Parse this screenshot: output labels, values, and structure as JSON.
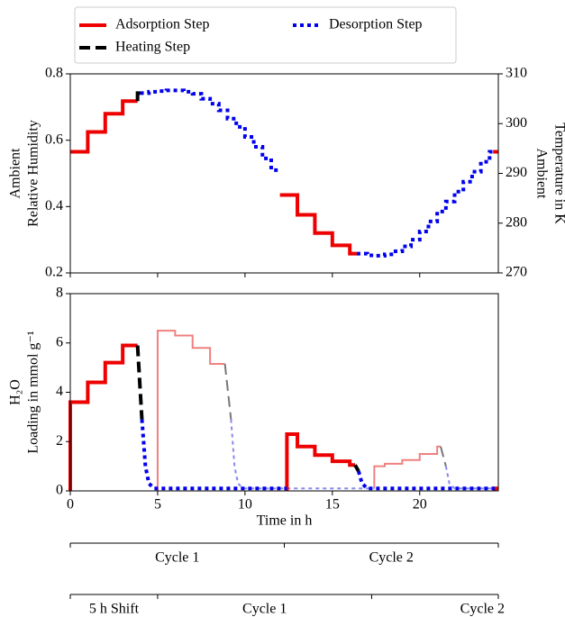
{
  "chart_data": [
    {
      "type": "line",
      "step": true,
      "xlim": [
        0,
        24.5
      ],
      "ylim": [
        0.2,
        0.8
      ],
      "yticks": [
        0.2,
        0.4,
        0.6,
        0.8
      ],
      "y2lim": [
        270,
        310
      ],
      "y2ticks": [
        270,
        280,
        290,
        300,
        310
      ],
      "xticks": [
        0,
        5,
        10,
        15,
        20
      ],
      "ylabel": [
        "Ambient",
        "Relative Humidity"
      ],
      "y2label": [
        "Ambient",
        "Temperature in K"
      ],
      "series": [
        {
          "name": "Adsorption Step",
          "color": "#ee0000",
          "style": "solid",
          "step": true,
          "x": [
            0,
            1,
            2,
            3,
            3.85,
            3.85,
            12,
            13,
            14,
            15,
            16,
            16.4,
            16.4,
            24.2,
            24.5
          ],
          "values": [
            0.565,
            0.625,
            0.68,
            0.718,
            0.718,
            null,
            0.435,
            0.375,
            0.32,
            0.283,
            0.258,
            0.258,
            null,
            0.565,
            0.565
          ]
        },
        {
          "name": "Heating Step",
          "color": "#000000",
          "style": "dashed",
          "step": true,
          "x": [
            3.85,
            3.85,
            4.0
          ],
          "values": [
            0.718,
            0.742,
            0.742
          ]
        },
        {
          "name": "Desorption Step",
          "color": "#0000ee",
          "style": "dotted",
          "step": true,
          "x": [
            4,
            4.5,
            5,
            5.5,
            6,
            6.5,
            7,
            7.5,
            8,
            8.5,
            9,
            9.5,
            10,
            10.5,
            11,
            11.5,
            12,
            12,
            16.4,
            17,
            17.5,
            18,
            18.5,
            19,
            19.5,
            20,
            20.5,
            21,
            21.5,
            22,
            22.5,
            23,
            23.5,
            24,
            24.2
          ],
          "values": [
            0.742,
            0.746,
            0.748,
            0.75,
            0.75,
            0.746,
            0.74,
            0.725,
            0.71,
            0.69,
            0.665,
            0.64,
            0.61,
            0.58,
            0.545,
            0.51,
            0.51,
            null,
            0.258,
            0.253,
            0.252,
            0.256,
            0.265,
            0.28,
            0.3,
            0.325,
            0.355,
            0.385,
            0.415,
            0.445,
            0.475,
            0.505,
            0.535,
            0.565,
            0.565
          ]
        }
      ]
    },
    {
      "type": "line",
      "xlim": [
        0,
        24.5
      ],
      "ylim": [
        0,
        8
      ],
      "yticks": [
        0,
        2,
        4,
        6,
        8
      ],
      "xticks": [
        0,
        5,
        10,
        15,
        20
      ],
      "xlabel": "Time in h",
      "ylabel": [
        "H₂O",
        "Loading in mmol g⁻¹"
      ],
      "series": [
        {
          "color": "#f08080",
          "style": "solid",
          "width": 2,
          "step": true,
          "x": [
            5,
            5,
            6,
            7,
            8,
            8.85,
            8.85,
            17.4,
            17.4,
            18,
            19,
            20,
            21,
            21.2
          ],
          "values": [
            0,
            6.5,
            6.3,
            5.8,
            5.15,
            5.15,
            null,
            0.1,
            1.0,
            1.1,
            1.25,
            1.5,
            1.8,
            1.8
          ]
        },
        {
          "color": "#777777",
          "style": "dashed",
          "width": 2,
          "step": false,
          "x": [
            8.85,
            9.2,
            9.2,
            21.2,
            21.5
          ],
          "values": [
            5.15,
            2.9,
            null,
            1.8,
            1.0
          ]
        },
        {
          "color": "#8888ee",
          "style": "dotted",
          "width": 2,
          "step": false,
          "x": [
            9.2,
            9.4,
            9.6,
            9.9,
            17.4,
            17.4,
            21.5,
            21.7,
            22.0,
            24.5
          ],
          "values": [
            2.9,
            1.0,
            0.3,
            0.1,
            0.1,
            null,
            1.0,
            0.3,
            0.1,
            0.1
          ]
        },
        {
          "color": "#ee0000",
          "style": "solid",
          "width": 4,
          "step": true,
          "x": [
            0,
            0,
            1,
            2,
            3,
            3.85,
            3.85,
            12.4,
            12.4,
            13,
            14,
            15,
            16,
            16.3,
            16.3,
            24.3,
            24.3,
            24.5
          ],
          "values": [
            0,
            3.6,
            4.4,
            5.2,
            5.9,
            5.9,
            null,
            0,
            2.3,
            1.8,
            1.45,
            1.2,
            1.05,
            1.05,
            null,
            0,
            0.1,
            0.1
          ]
        },
        {
          "color": "#000000",
          "style": "dashed",
          "width": 4,
          "step": false,
          "x": [
            3.85,
            4.1,
            4.1,
            16.3,
            16.5
          ],
          "values": [
            5.9,
            2.9,
            null,
            1.05,
            0.8
          ]
        },
        {
          "color": "#0000ee",
          "style": "dotted",
          "width": 4,
          "step": false,
          "x": [
            4.1,
            4.3,
            4.5,
            4.8,
            12.4,
            12.4,
            16.5,
            16.7,
            17.0,
            24.3
          ],
          "values": [
            2.9,
            1.0,
            0.3,
            0.1,
            0.1,
            null,
            0.8,
            0.3,
            0.1,
            0.1
          ]
        }
      ]
    }
  ],
  "cycles": [
    {
      "bounds": [
        0,
        12.25,
        24.5
      ],
      "labels": [
        "Cycle 1",
        "Cycle 2"
      ]
    },
    {
      "bounds": [
        0,
        5,
        17.25,
        24.5
      ],
      "labels": [
        "5 h Shift",
        "Cycle 1",
        "Cycle 2"
      ]
    }
  ]
}
